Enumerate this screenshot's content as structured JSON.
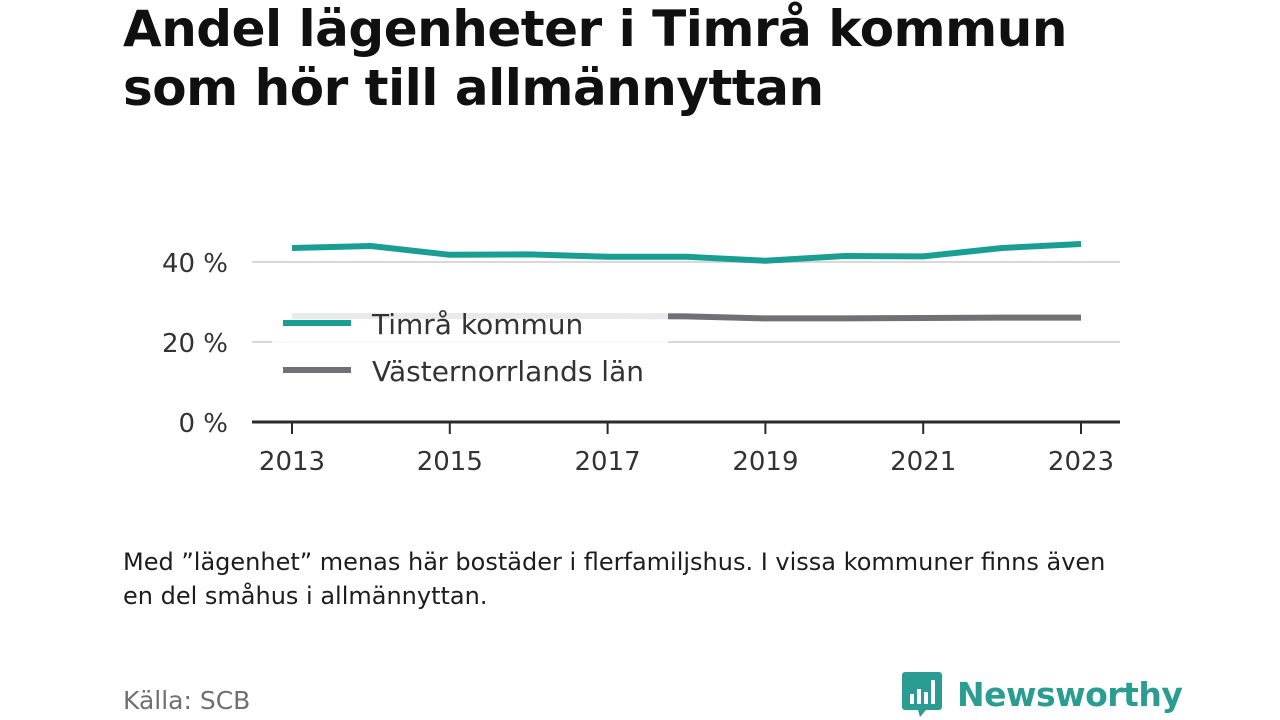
{
  "title": "Andel lägenheter i Timrå kommun som hör till allmännyttan",
  "note": "Med ”lägenhet” menas här bostäder i flerfamiljshus. I vissa kommuner finns även en del småhus i allmännyttan.",
  "source": "Källa: SCB",
  "brand": {
    "name": "Newsworthy",
    "icon": "newsworthy-logo-icon",
    "color": "#2a9c92"
  },
  "chart_data": {
    "type": "line",
    "x": [
      2013,
      2014,
      2015,
      2016,
      2017,
      2018,
      2019,
      2020,
      2021,
      2022,
      2023
    ],
    "series": [
      {
        "name": "Timrå kommun",
        "color": "#1a9e94",
        "values": [
          43.5,
          44.0,
          41.8,
          41.9,
          41.3,
          41.3,
          40.3,
          41.5,
          41.4,
          43.5,
          44.5
        ]
      },
      {
        "name": "Västernorrlands län",
        "color": "#707075",
        "values": [
          26.5,
          26.5,
          26.5,
          26.5,
          26.5,
          26.4,
          25.9,
          25.9,
          26.0,
          26.1,
          26.1
        ]
      }
    ],
    "ylim": [
      0,
      44.5
    ],
    "yticks": [
      0,
      20,
      40
    ],
    "ytick_labels": [
      "0 %",
      "20 %",
      "40 %"
    ],
    "xticks": [
      2013,
      2015,
      2017,
      2019,
      2021,
      2023
    ],
    "xtick_labels": [
      "2013",
      "2015",
      "2017",
      "2019",
      "2021",
      "2023"
    ],
    "grid": true,
    "legend": "inside-left"
  }
}
